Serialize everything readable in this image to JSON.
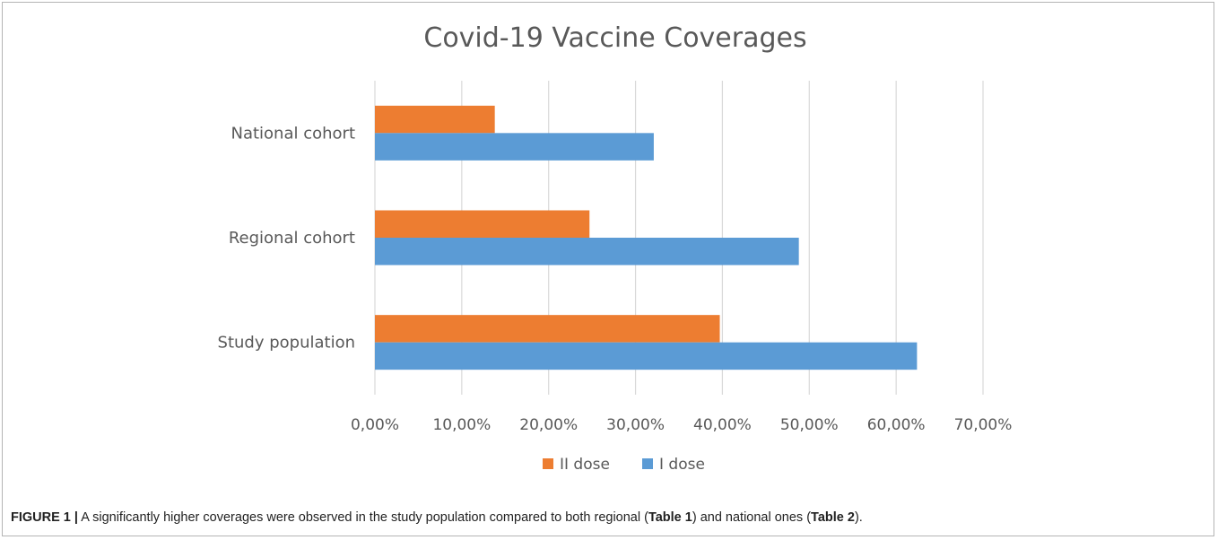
{
  "chart_data": {
    "type": "bar",
    "orientation": "horizontal",
    "title": "Covid-19 Vaccine Coverages",
    "categories": [
      "National cohort",
      "Regional cohort",
      "Study population"
    ],
    "series": [
      {
        "name": "II dose",
        "color": "#ED7D31",
        "values": [
          0.138,
          0.247,
          0.397
        ]
      },
      {
        "name": "I dose",
        "color": "#5B9BD5",
        "values": [
          0.321,
          0.488,
          0.624
        ]
      }
    ],
    "xlim": [
      0,
      0.7
    ],
    "x_ticks": [
      "0,00%",
      "10,00%",
      "20,00%",
      "30,00%",
      "40,00%",
      "50,00%",
      "60,00%",
      "70,00%"
    ],
    "grid": true,
    "legend_position": "bottom"
  },
  "caption": {
    "label": "FIGURE 1 |",
    "part1": "A significantly higher coverages were observed in the study population compared to both regional (",
    "ref1": "Table 1",
    "part2": ") and national ones (",
    "ref2": "Table 2",
    "part3": ")."
  }
}
